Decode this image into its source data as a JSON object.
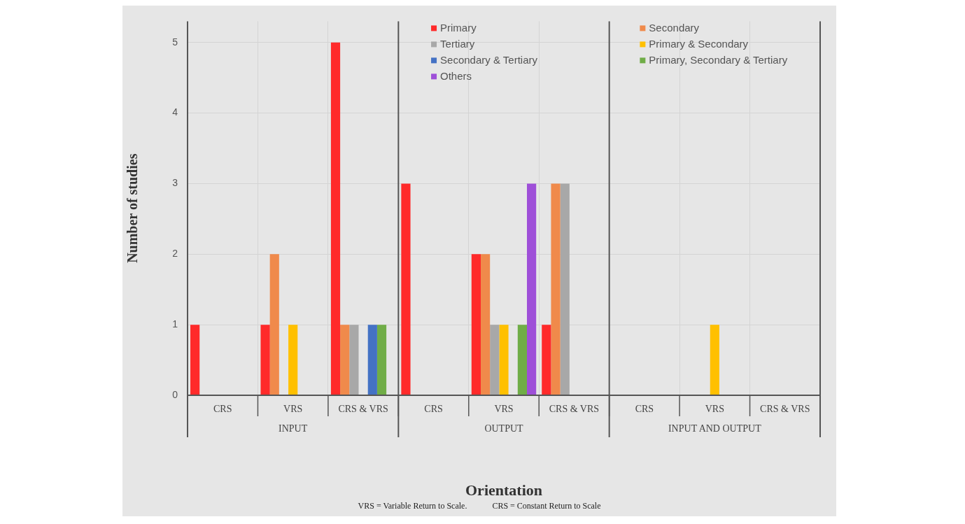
{
  "chart_data": {
    "type": "bar",
    "xlabel": "Orientation",
    "ylabel": "Number of studies",
    "categories": [
      "CRS",
      "VRS",
      "CRS & VRS",
      "CRS",
      "VRS",
      "CRS & VRS",
      "CRS",
      "VRS",
      "CRS & VRS"
    ],
    "series": [
      {
        "name": "Primary",
        "color": "#ff2a2a",
        "values": [
          1,
          1,
          5,
          3,
          2,
          1,
          0,
          0,
          0
        ]
      },
      {
        "name": "Secondary",
        "color": "#f08a4b",
        "values": [
          0,
          2,
          1,
          0,
          2,
          3,
          0,
          0,
          0
        ]
      },
      {
        "name": "Tertiary",
        "color": "#a8a8a8",
        "values": [
          0,
          0,
          1,
          0,
          1,
          3,
          0,
          0,
          0
        ]
      },
      {
        "name": "Primary & Secondary",
        "color": "#ffc000",
        "values": [
          0,
          1,
          0,
          0,
          1,
          0,
          0,
          1,
          0
        ]
      },
      {
        "name": "Secondary & Tertiary",
        "color": "#4472c4",
        "values": [
          0,
          0,
          1,
          0,
          0,
          0,
          0,
          0,
          0
        ]
      },
      {
        "name": "Primary, Secondary & Tertiary",
        "color": "#70ad47",
        "values": [
          0,
          0,
          1,
          0,
          1,
          0,
          0,
          0,
          0
        ]
      },
      {
        "name": "Others",
        "color": "#9e4fd8",
        "values": [
          0,
          0,
          0,
          0,
          3,
          0,
          0,
          0,
          0
        ]
      }
    ],
    "ylim": [
      0,
      5.3
    ],
    "yticks": [
      0,
      1,
      2,
      3,
      4,
      5
    ],
    "grid": true,
    "legend": "top right",
    "annotations": [
      "INPUT",
      "OUTPUT",
      "INPUT AND OUTPUT",
      "VRS = Variable Return to Scale.            CRS = Constant Return to Scale"
    ]
  }
}
